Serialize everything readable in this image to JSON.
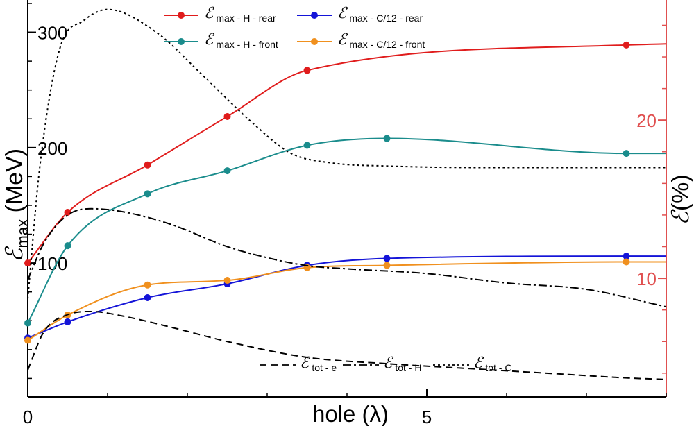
{
  "chart_data": {
    "type": "line",
    "title": "",
    "xlabel": "hole (λ)",
    "ylabel_left": {
      "symbol": "ℰ",
      "sub": "max",
      "unit": " (MeV)"
    },
    "ylabel_right": {
      "symbol": "ℰ",
      "unit": "(%)"
    },
    "x_range": [
      0,
      8
    ],
    "x_ticks": [
      {
        "value": 0,
        "label": "0"
      },
      {
        "value": 5,
        "label": "5"
      }
    ],
    "x_minor_step": 1,
    "y_left_range": [
      -16,
      328
    ],
    "y_left_ticks": [
      {
        "value": 100,
        "label": "100"
      },
      {
        "value": 200,
        "label": "200"
      },
      {
        "value": 300,
        "label": "300"
      }
    ],
    "y_left_minor_step": 25,
    "y_right_range": [
      2.5,
      27.6
    ],
    "y_right_ticks": [
      {
        "value": 10,
        "label": "10"
      },
      {
        "value": 20,
        "label": "20"
      }
    ],
    "y_right_minor_step": 2,
    "grid": false,
    "series": [
      {
        "name": "max - H - rear",
        "sym": "ℰ",
        "sub": "max - H - rear",
        "axis": "left",
        "color": "#e01c1c",
        "dash": "solid",
        "markers": true,
        "x": [
          0,
          0.5,
          1.5,
          2.5,
          3.5,
          7.5,
          8
        ],
        "y": [
          100,
          144,
          185,
          227,
          267,
          289,
          290
        ]
      },
      {
        "name": "max - H - front",
        "sym": "ℰ",
        "sub": "max - H - front",
        "axis": "left",
        "color": "#1a8c8c",
        "dash": "solid",
        "markers": true,
        "x": [
          0,
          0.5,
          1.5,
          2.5,
          3.5,
          4.5,
          7.5,
          8
        ],
        "y": [
          48,
          115,
          160,
          180,
          202,
          208,
          195,
          195
        ]
      },
      {
        "name": "max - C/12 - rear",
        "sym": "ℰ",
        "sub": "max - C/12 - rear",
        "axis": "left",
        "color": "#1414d8",
        "dash": "solid",
        "markers": true,
        "x": [
          0,
          0.5,
          1.5,
          2.5,
          3.5,
          4.5,
          7.5,
          8
        ],
        "y": [
          35,
          49,
          70,
          82,
          98,
          104,
          106,
          106
        ]
      },
      {
        "name": "max - C/12 - front",
        "sym": "ℰ",
        "sub": "max - C/12 - front",
        "axis": "left",
        "color": "#f0901e",
        "dash": "solid",
        "markers": true,
        "x": [
          0,
          0.5,
          1.5,
          2.5,
          3.5,
          4.5,
          7.5,
          8
        ],
        "y": [
          33,
          55,
          81,
          85,
          96,
          98,
          101,
          101
        ]
      },
      {
        "name": "tot - e",
        "sym": "ℰ",
        "sub": "tot - e",
        "axis": "right",
        "color": "#000000",
        "dash": "dashed",
        "markers": false,
        "x": [
          0,
          0.2,
          0.5,
          0.8,
          1.2,
          1.8,
          2.5,
          3.5,
          4.5,
          5.5,
          6.5,
          7.5,
          8
        ],
        "y": [
          4.2,
          6.6,
          7.7,
          7.9,
          7.6,
          6.9,
          6.0,
          5.0,
          4.6,
          4.3,
          4.0,
          3.7,
          3.6
        ]
      },
      {
        "name": "tot - H",
        "sym": "ℰ",
        "sub": "tot - H",
        "axis": "right",
        "color": "#000000",
        "dash": "dashdot",
        "markers": false,
        "x": [
          0,
          0.2,
          0.5,
          0.8,
          1.2,
          1.8,
          2.5,
          3.0,
          3.5,
          4.0,
          5.0,
          6.0,
          7.0,
          8.0
        ],
        "y": [
          9.9,
          12.2,
          14.0,
          14.4,
          14.2,
          13.4,
          12.0,
          11.3,
          10.8,
          10.6,
          10.3,
          9.7,
          9.3,
          8.2
        ]
      },
      {
        "name": "tot - C",
        "sym": "ℰ",
        "sub": "tot - C",
        "axis": "right",
        "color": "#000000",
        "dash": "dotted",
        "markers": false,
        "x": [
          0,
          0.15,
          0.4,
          0.7,
          1.0,
          1.6,
          2.2,
          2.8,
          3.3,
          3.8,
          4.5,
          6.0,
          8.0
        ],
        "y": [
          8.7,
          17.0,
          24.5,
          26.3,
          27.0,
          25.6,
          22.8,
          19.9,
          17.9,
          17.3,
          17.1,
          17.0,
          17.0
        ]
      }
    ],
    "legend_top": {
      "placement": "top",
      "rows": [
        [
          "max - H - rear",
          "max - C/12 - rear"
        ],
        [
          "max - H - front",
          "max - C/12 - front"
        ]
      ]
    },
    "legend_bottom": {
      "placement": "bottom",
      "items": [
        "tot - e",
        "tot - H",
        "tot - C"
      ]
    }
  }
}
